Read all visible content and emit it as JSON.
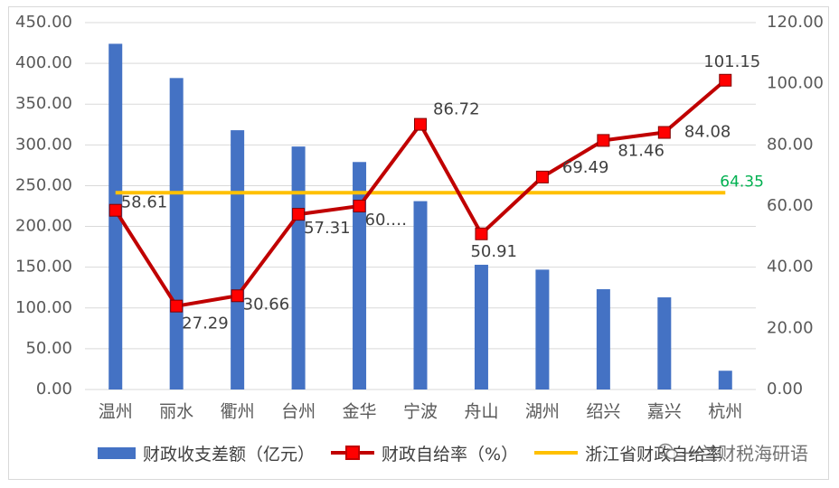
{
  "chart_data": {
    "type": "bar",
    "categories": [
      "温州",
      "丽水",
      "衢州",
      "台州",
      "金华",
      "宁波",
      "舟山",
      "湖州",
      "绍兴",
      "嘉兴",
      "杭州"
    ],
    "series": [
      {
        "name": "财政收支差额（亿元）",
        "type": "bar",
        "axis": "left",
        "color": "#4472c4",
        "values": [
          424,
          382,
          318,
          298,
          279,
          231,
          153,
          147,
          123,
          113,
          23
        ]
      },
      {
        "name": "财政自给率（%）",
        "type": "line",
        "axis": "right",
        "color": "#c00000",
        "marker_color": "#ff0000",
        "values": [
          58.61,
          27.29,
          30.66,
          57.31,
          60.0,
          86.72,
          50.91,
          69.49,
          81.46,
          84.08,
          101.15
        ],
        "labels": [
          "58.61",
          "27.29",
          "30.66",
          "57.31",
          "60.…",
          "86.72",
          "50.91",
          "69.49",
          "81.46",
          "84.08",
          "101.15"
        ]
      },
      {
        "name": "浙江省财政自给率",
        "type": "line",
        "axis": "right",
        "color": "#ffc000",
        "values": [
          64.35,
          64.35,
          64.35,
          64.35,
          64.35,
          64.35,
          64.35,
          64.35,
          64.35,
          64.35,
          64.35
        ],
        "end_label": "64.35",
        "end_label_color": "#00b050"
      }
    ],
    "y_left": {
      "range": [
        0,
        450
      ],
      "ticks": [
        "0.00",
        "50.00",
        "100.00",
        "150.00",
        "200.00",
        "250.00",
        "300.00",
        "350.00",
        "400.00",
        "450.00"
      ]
    },
    "y_right": {
      "range": [
        0,
        120
      ],
      "ticks": [
        "0.00",
        "20.00",
        "40.00",
        "60.00",
        "80.00",
        "100.00",
        "120.00"
      ]
    },
    "grid": true,
    "legend_position": "bottom"
  },
  "legend": {
    "bar_label": "财政收支差额（亿元）",
    "line_label": "财政自给率（%）",
    "avg_label": "浙江省财政自给率"
  },
  "watermark": {
    "text": "一兰财税海研语"
  }
}
